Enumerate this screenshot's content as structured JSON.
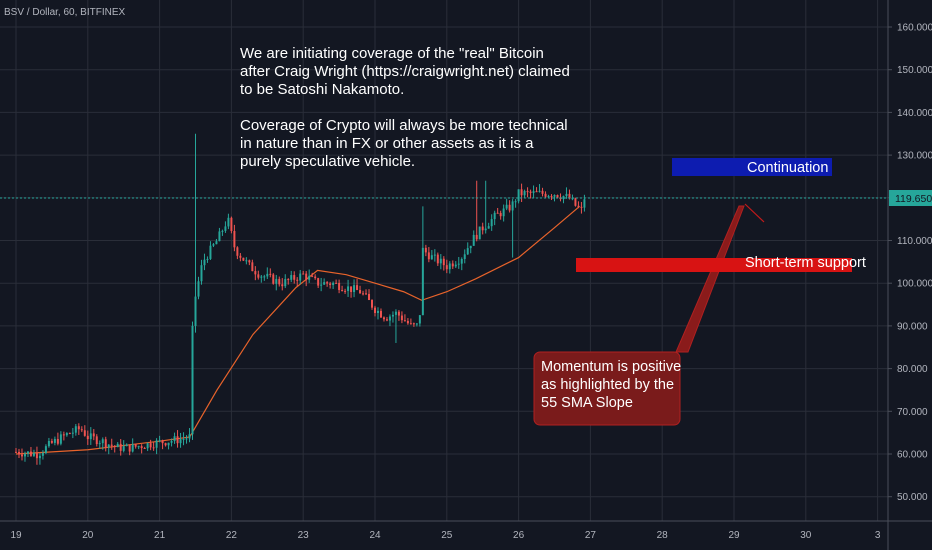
{
  "symbol_line": "BSV / Dollar, 60, BITFINEX",
  "commentary": [
    "We are initiating coverage of the \"real\" Bitcoin",
    "after Craig Wright (https://craigwright.net) claimed",
    "to be Satoshi Nakamoto.",
    "",
    "Coverage of Crypto will always be more technical",
    "in nature than in FX or other assets as it is a",
    "purely speculative vehicle."
  ],
  "annotations": {
    "continuation": "Continuation",
    "short_term_support": "Short-term support",
    "momentum": [
      "Momentum is positive",
      "as highlighted by the",
      "55 SMA Slope"
    ]
  },
  "last_price_label": "119.650",
  "colors": {
    "background": "#131722",
    "grid": "#2a2e39",
    "up": "#26a69a",
    "down": "#ef5350",
    "sma": "#e8632b",
    "continuation_box": "#0d1cb0",
    "support_box": "#d81313",
    "momentum_box": "#7a1b1b",
    "last_price": "#26a69a"
  },
  "chart_data": {
    "type": "candlestick",
    "x_tick_labels": [
      "19",
      "20",
      "21",
      "22",
      "23",
      "24",
      "25",
      "26",
      "27",
      "28",
      "29",
      "30",
      "3"
    ],
    "y_tick_labels": [
      "50.000",
      "60.000",
      "70.000",
      "80.000",
      "90.000",
      "100.000",
      "110.000",
      "120.000",
      "130.000",
      "140.000",
      "150.000",
      "160.000"
    ],
    "ylim": [
      46,
      164
    ],
    "grid": true,
    "last_price": 119.65,
    "price_path": [
      [
        0,
        60.5
      ],
      [
        0.3,
        60
      ],
      [
        0.5,
        62.5
      ],
      [
        0.7,
        64.5
      ],
      [
        0.9,
        66
      ],
      [
        1.0,
        64
      ],
      [
        1.2,
        63
      ],
      [
        1.4,
        61.5
      ],
      [
        1.6,
        61.5
      ],
      [
        1.9,
        62.5
      ],
      [
        2.1,
        63
      ],
      [
        2.3,
        63.5
      ],
      [
        2.42,
        64
      ],
      [
        2.46,
        90
      ],
      [
        2.5,
        97
      ],
      [
        2.6,
        105
      ],
      [
        2.8,
        110
      ],
      [
        2.95,
        115
      ],
      [
        3.05,
        108
      ],
      [
        3.25,
        104
      ],
      [
        3.4,
        102
      ],
      [
        3.55,
        101
      ],
      [
        3.7,
        100
      ],
      [
        3.85,
        101
      ],
      [
        4.0,
        102
      ],
      [
        4.2,
        100
      ],
      [
        4.4,
        100
      ],
      [
        4.6,
        99
      ],
      [
        4.8,
        98
      ],
      [
        5.0,
        94
      ],
      [
        5.15,
        92
      ],
      [
        5.3,
        93
      ],
      [
        5.5,
        90
      ],
      [
        5.62,
        90
      ],
      [
        5.65,
        108
      ],
      [
        5.8,
        106
      ],
      [
        6.0,
        104
      ],
      [
        6.2,
        106
      ],
      [
        6.35,
        110
      ],
      [
        6.5,
        113
      ],
      [
        6.7,
        116
      ],
      [
        6.9,
        118
      ],
      [
        7.0,
        121
      ],
      [
        7.15,
        121
      ],
      [
        7.3,
        121
      ],
      [
        7.5,
        121
      ],
      [
        7.7,
        120
      ],
      [
        7.8,
        118
      ],
      [
        7.88,
        117
      ],
      [
        7.92,
        119.65
      ]
    ],
    "high_spikes": [
      [
        2.49,
        135
      ],
      [
        5.65,
        118
      ],
      [
        6.4,
        124
      ],
      [
        6.55,
        124
      ]
    ],
    "low_spikes": [
      [
        5.28,
        86
      ],
      [
        6.9,
        106
      ]
    ],
    "series": [
      {
        "type": "line",
        "x": [
          0,
          1,
          2,
          2.42,
          2.8,
          3.3,
          3.9,
          4.2,
          4.6,
          5.0,
          5.4,
          5.65,
          6.0,
          6.4,
          7.0,
          7.5,
          7.85
        ],
        "y": [
          60,
          61,
          63,
          64,
          75,
          88,
          99,
          103,
          102,
          100,
          98,
          96,
          98,
          101,
          106,
          113,
          118
        ]
      }
    ],
    "notes": [
      "x values are in days, counted from the tick labelled 19 (tick labels as printed)",
      "series[0] is the 55 SMA (orange line)"
    ]
  }
}
